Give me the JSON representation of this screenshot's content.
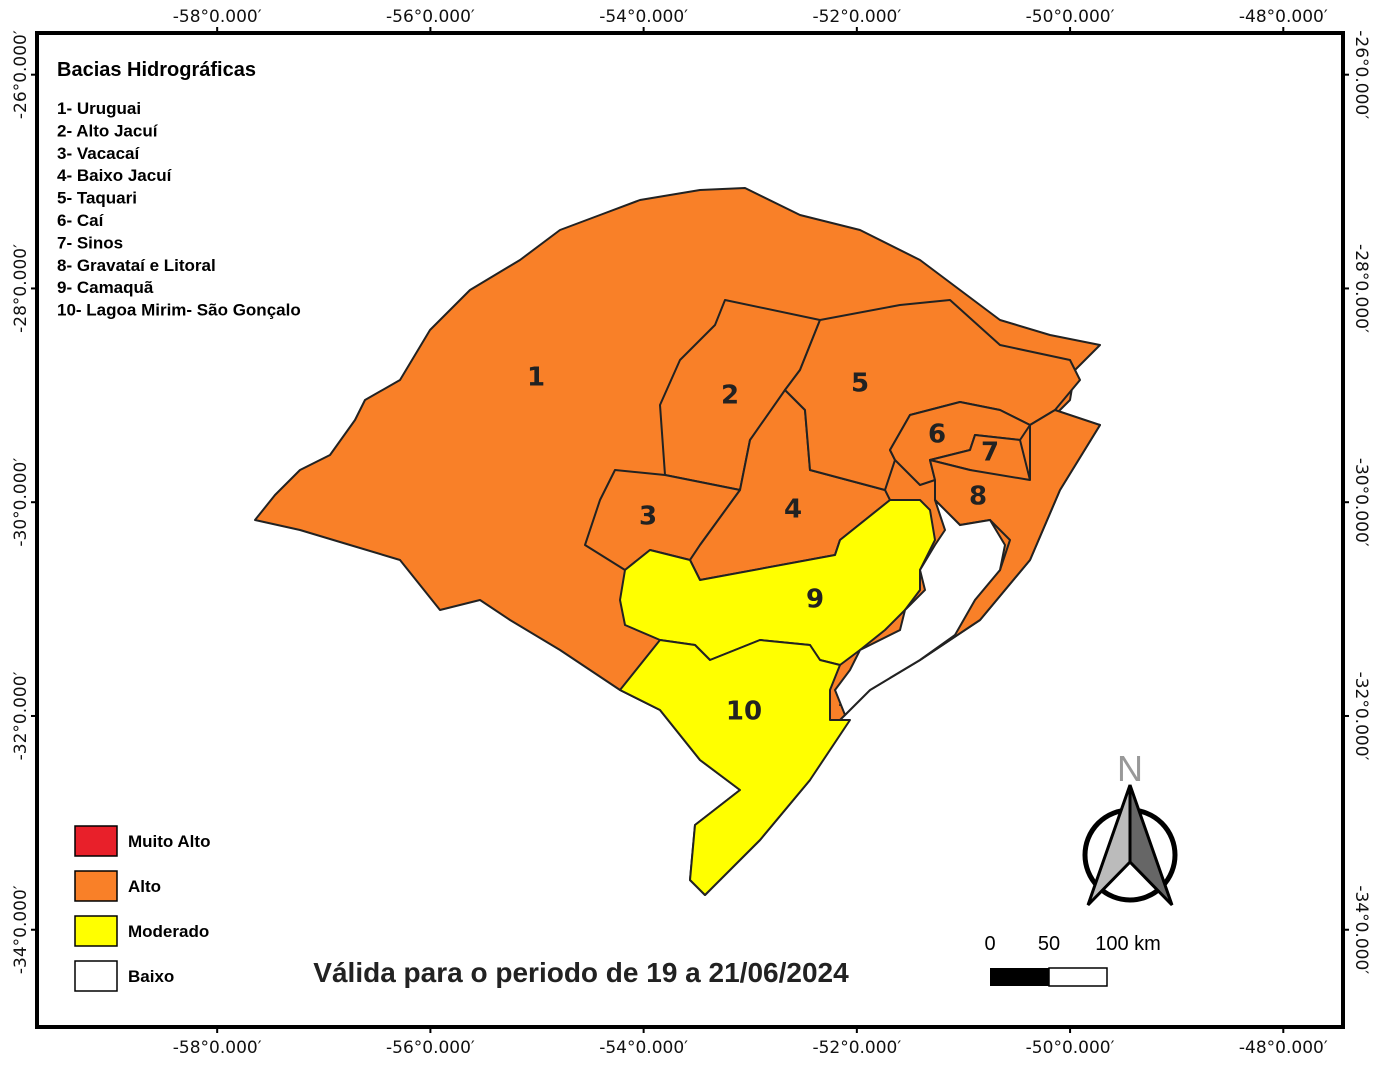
{
  "legend": {
    "title": "Bacias Hidrográficas",
    "items": [
      "1- Uruguai",
      "2- Alto Jacuí",
      "3- Vacacaí",
      "4- Baixo Jacuí",
      "5- Taquari",
      "6- Caí",
      "7- Sinos",
      "8- Gravataí e Litoral",
      "9- Camaquã",
      "10- Lagoa Mirim- São Gonçalo"
    ]
  },
  "risk_legend": [
    {
      "label": "Muito Alto",
      "color": "#e8202a"
    },
    {
      "label": "Alto",
      "color": "#f98028"
    },
    {
      "label": "Moderado",
      "color": "#ffff00"
    },
    {
      "label": "Baixo",
      "color": "#ffffff"
    }
  ],
  "basins": [
    {
      "label": "1",
      "color": "#f98028"
    },
    {
      "label": "2",
      "color": "#f98028"
    },
    {
      "label": "3",
      "color": "#f98028"
    },
    {
      "label": "4",
      "color": "#f98028"
    },
    {
      "label": "5",
      "color": "#f98028"
    },
    {
      "label": "6",
      "color": "#f98028"
    },
    {
      "label": "7",
      "color": "#f98028"
    },
    {
      "label": "8",
      "color": "#f98028"
    },
    {
      "label": "9",
      "color": "#ffff00"
    },
    {
      "label": "10",
      "color": "#ffff00"
    }
  ],
  "title": "Válida para o periodo de 19 a 21/06/2024",
  "map": {
    "lonlim": [
      -59.69,
      -47.44
    ],
    "latlim": [
      -34.91,
      -25.61
    ],
    "lonticks": [
      {
        "value": -58,
        "label": "-58°0.000′"
      },
      {
        "value": -56,
        "label": "-56°0.000′"
      },
      {
        "value": -54,
        "label": "-54°0.000′"
      },
      {
        "value": -52,
        "label": "-52°0.000′"
      },
      {
        "value": -50,
        "label": "-50°0.000′"
      },
      {
        "value": -48,
        "label": "-48°0.000′"
      }
    ],
    "latticks": [
      {
        "value": -26,
        "label": "-26°0.000′"
      },
      {
        "value": -28,
        "label": "-28°0.000′"
      },
      {
        "value": -30,
        "label": "-30°0.000′"
      },
      {
        "value": -32,
        "label": "-32°0.000′"
      },
      {
        "value": -34,
        "label": "-34°0.000′"
      }
    ]
  },
  "scale": {
    "labels": [
      "0",
      "50",
      "100 km"
    ]
  },
  "north": "N"
}
